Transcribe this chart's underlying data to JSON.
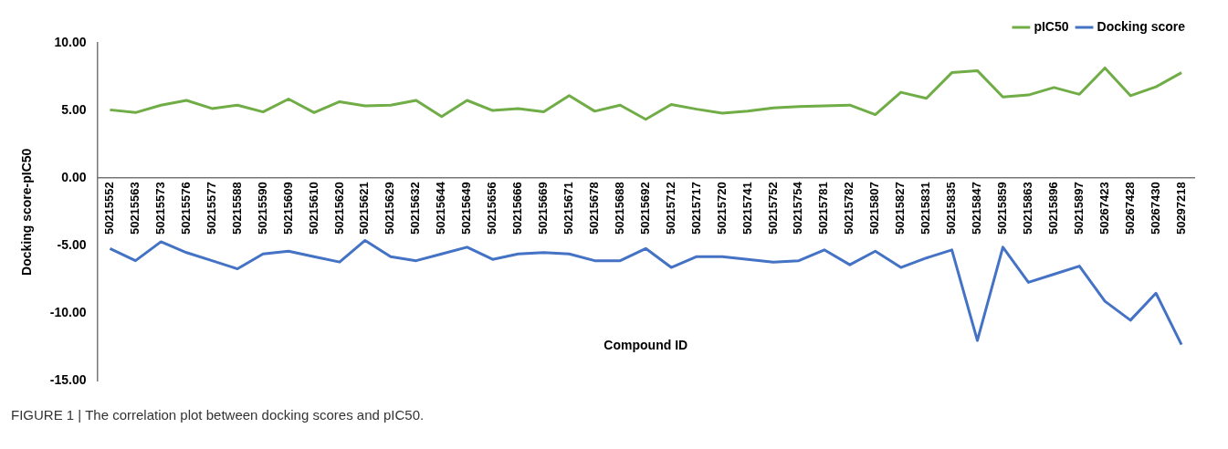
{
  "chart_data": {
    "type": "line",
    "xlabel": "Compound ID",
    "ylabel": "Docking score-pIC50",
    "categories": [
      "50215552",
      "50215563",
      "50215573",
      "50215576",
      "50215577",
      "50215588",
      "50215590",
      "50215609",
      "50215610",
      "50215620",
      "50215621",
      "50215629",
      "50215632",
      "50215644",
      "50215649",
      "50215656",
      "50215666",
      "50215669",
      "50215671",
      "50215678",
      "50215688",
      "50215692",
      "50215712",
      "50215717",
      "50215720",
      "50215741",
      "50215752",
      "50215754",
      "50215781",
      "50215782",
      "50215807",
      "50215827",
      "50215831",
      "50215835",
      "50215847",
      "50215859",
      "50215863",
      "50215896",
      "50215897",
      "50267423",
      "50267428",
      "50267430",
      "50297218"
    ],
    "series": [
      {
        "name": "pIC50",
        "color": "#70ad47",
        "values": [
          5.05,
          4.85,
          5.4,
          5.75,
          5.15,
          5.4,
          4.9,
          5.85,
          4.85,
          5.65,
          5.35,
          5.4,
          5.75,
          4.55,
          5.75,
          5.0,
          5.15,
          4.9,
          6.1,
          4.95,
          5.4,
          4.35,
          5.45,
          5.1,
          4.8,
          4.95,
          5.2,
          5.3,
          5.35,
          5.4,
          4.7,
          6.35,
          5.9,
          7.8,
          7.95,
          6.0,
          6.15,
          6.7,
          6.2,
          8.15,
          6.1,
          6.75,
          7.8
        ]
      },
      {
        "name": "Docking score",
        "color": "#4472c4",
        "values": [
          -5.2,
          -6.1,
          -4.7,
          -5.5,
          -6.1,
          -6.7,
          -5.6,
          -5.4,
          -5.8,
          -6.2,
          -4.6,
          -5.8,
          -6.1,
          -5.6,
          -5.1,
          -6.0,
          -5.6,
          -5.5,
          -5.6,
          -6.1,
          -6.1,
          -5.2,
          -6.6,
          -5.8,
          -5.8,
          -6.0,
          -6.2,
          -6.1,
          -5.3,
          -6.4,
          -5.4,
          -6.6,
          -5.9,
          -5.3,
          -12.0,
          -5.1,
          -7.7,
          -7.1,
          -6.5,
          -9.1,
          -10.5,
          -8.5,
          -12.3
        ]
      }
    ],
    "ylim": [
      -15,
      10
    ],
    "yticks": [
      {
        "value": -15,
        "label": "-15.00"
      },
      {
        "value": -10,
        "label": "-10.00"
      },
      {
        "value": -5,
        "label": "-5.00"
      },
      {
        "value": 0,
        "label": "0.00"
      },
      {
        "value": 5,
        "label": "5.00"
      },
      {
        "value": 10,
        "label": "10.00"
      }
    ],
    "grid": false,
    "legend": "top right",
    "marker": "none",
    "line_style": "solid",
    "annotations": [
      "FIGURE 1 | The correlation plot between docking scores and pIC50."
    ]
  }
}
